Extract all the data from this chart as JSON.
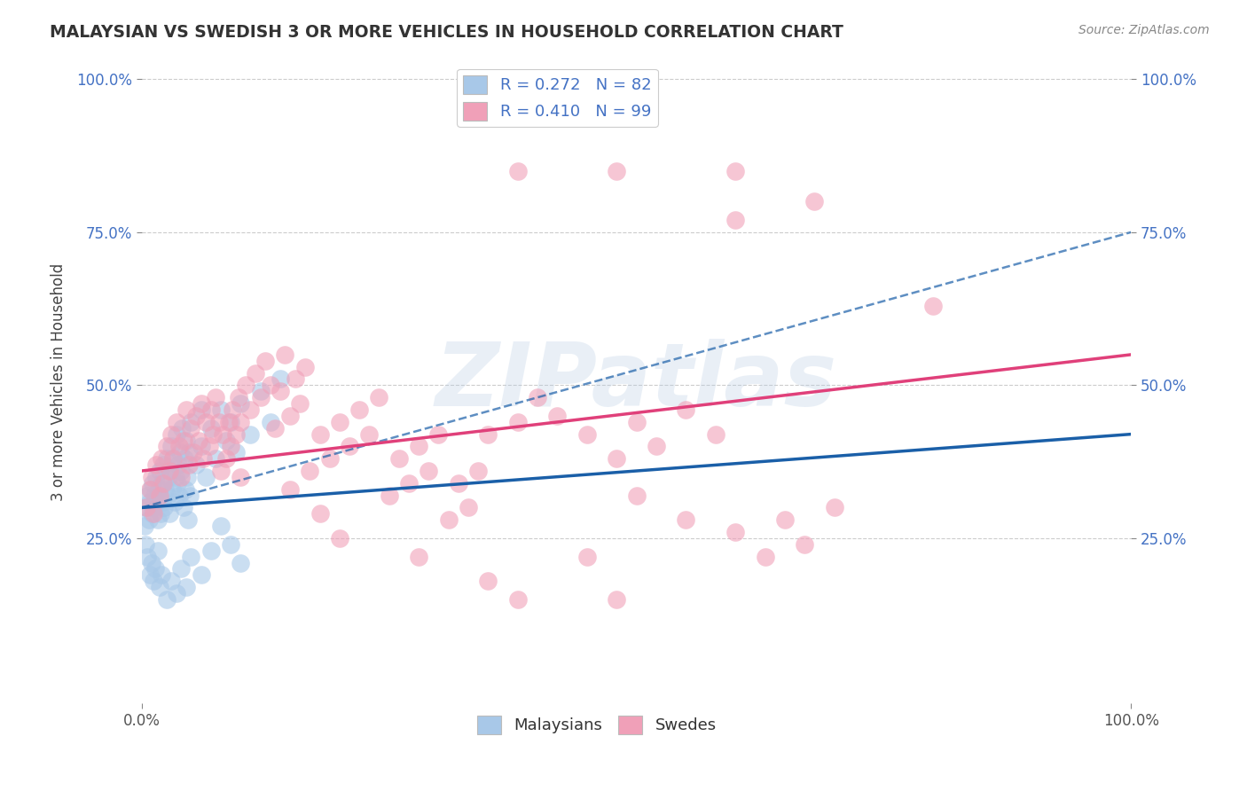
{
  "title": "MALAYSIAN VS SWEDISH 3 OR MORE VEHICLES IN HOUSEHOLD CORRELATION CHART",
  "source": "Source: ZipAtlas.com",
  "ylabel": "3 or more Vehicles in Household",
  "xlim": [
    0,
    1
  ],
  "ylim": [
    0,
    1
  ],
  "xtick_positions": [
    0.0,
    1.0
  ],
  "xtick_labels": [
    "0.0%",
    "100.0%"
  ],
  "ytick_positions": [
    0.25,
    0.5,
    0.75,
    1.0
  ],
  "ytick_labels": [
    "25.0%",
    "50.0%",
    "75.0%",
    "100.0%"
  ],
  "blue_color": "#a8c8e8",
  "pink_color": "#f0a0b8",
  "blue_line_color": "#1a5fa8",
  "pink_line_color": "#e0407a",
  "blue_line_style": "-",
  "blue_dash_style": "--",
  "background_color": "#ffffff",
  "grid_color": "#cccccc",
  "watermark": "ZIPatlas",
  "tick_color": "#4472c4",
  "title_color": "#333333",
  "blue_scatter": [
    [
      0.005,
      0.3
    ],
    [
      0.006,
      0.32
    ],
    [
      0.007,
      0.28
    ],
    [
      0.008,
      0.31
    ],
    [
      0.009,
      0.33
    ],
    [
      0.01,
      0.29
    ],
    [
      0.011,
      0.34
    ],
    [
      0.012,
      0.3
    ],
    [
      0.013,
      0.32
    ],
    [
      0.014,
      0.31
    ],
    [
      0.015,
      0.35
    ],
    [
      0.016,
      0.28
    ],
    [
      0.017,
      0.33
    ],
    [
      0.018,
      0.36
    ],
    [
      0.019,
      0.29
    ],
    [
      0.02,
      0.34
    ],
    [
      0.021,
      0.31
    ],
    [
      0.022,
      0.37
    ],
    [
      0.023,
      0.3
    ],
    [
      0.024,
      0.33
    ],
    [
      0.025,
      0.38
    ],
    [
      0.026,
      0.32
    ],
    [
      0.027,
      0.35
    ],
    [
      0.028,
      0.29
    ],
    [
      0.029,
      0.36
    ],
    [
      0.03,
      0.4
    ],
    [
      0.031,
      0.33
    ],
    [
      0.032,
      0.38
    ],
    [
      0.033,
      0.31
    ],
    [
      0.034,
      0.35
    ],
    [
      0.035,
      0.42
    ],
    [
      0.036,
      0.34
    ],
    [
      0.037,
      0.37
    ],
    [
      0.038,
      0.32
    ],
    [
      0.039,
      0.39
    ],
    [
      0.04,
      0.36
    ],
    [
      0.041,
      0.43
    ],
    [
      0.042,
      0.3
    ],
    [
      0.043,
      0.38
    ],
    [
      0.044,
      0.33
    ],
    [
      0.045,
      0.41
    ],
    [
      0.046,
      0.35
    ],
    [
      0.047,
      0.28
    ],
    [
      0.048,
      0.39
    ],
    [
      0.049,
      0.32
    ],
    [
      0.05,
      0.44
    ],
    [
      0.055,
      0.37
    ],
    [
      0.06,
      0.4
    ],
    [
      0.065,
      0.35
    ],
    [
      0.07,
      0.43
    ],
    [
      0.075,
      0.38
    ],
    [
      0.08,
      0.46
    ],
    [
      0.085,
      0.41
    ],
    [
      0.09,
      0.44
    ],
    [
      0.095,
      0.39
    ],
    [
      0.1,
      0.47
    ],
    [
      0.11,
      0.42
    ],
    [
      0.12,
      0.49
    ],
    [
      0.13,
      0.44
    ],
    [
      0.14,
      0.51
    ],
    [
      0.003,
      0.27
    ],
    [
      0.004,
      0.24
    ],
    [
      0.006,
      0.22
    ],
    [
      0.008,
      0.19
    ],
    [
      0.01,
      0.21
    ],
    [
      0.012,
      0.18
    ],
    [
      0.014,
      0.2
    ],
    [
      0.016,
      0.23
    ],
    [
      0.018,
      0.17
    ],
    [
      0.02,
      0.19
    ],
    [
      0.025,
      0.15
    ],
    [
      0.03,
      0.18
    ],
    [
      0.035,
      0.16
    ],
    [
      0.04,
      0.2
    ],
    [
      0.045,
      0.17
    ],
    [
      0.05,
      0.22
    ],
    [
      0.06,
      0.19
    ],
    [
      0.07,
      0.23
    ],
    [
      0.08,
      0.27
    ],
    [
      0.09,
      0.24
    ],
    [
      0.1,
      0.21
    ],
    [
      0.06,
      0.46
    ]
  ],
  "pink_scatter": [
    [
      0.005,
      0.3
    ],
    [
      0.008,
      0.33
    ],
    [
      0.01,
      0.35
    ],
    [
      0.012,
      0.29
    ],
    [
      0.015,
      0.37
    ],
    [
      0.018,
      0.32
    ],
    [
      0.02,
      0.38
    ],
    [
      0.022,
      0.34
    ],
    [
      0.025,
      0.4
    ],
    [
      0.028,
      0.36
    ],
    [
      0.03,
      0.42
    ],
    [
      0.032,
      0.38
    ],
    [
      0.035,
      0.44
    ],
    [
      0.038,
      0.4
    ],
    [
      0.04,
      0.35
    ],
    [
      0.042,
      0.41
    ],
    [
      0.045,
      0.46
    ],
    [
      0.048,
      0.37
    ],
    [
      0.05,
      0.43
    ],
    [
      0.052,
      0.39
    ],
    [
      0.055,
      0.45
    ],
    [
      0.058,
      0.41
    ],
    [
      0.06,
      0.47
    ],
    [
      0.062,
      0.38
    ],
    [
      0.065,
      0.44
    ],
    [
      0.068,
      0.4
    ],
    [
      0.07,
      0.46
    ],
    [
      0.072,
      0.42
    ],
    [
      0.075,
      0.48
    ],
    [
      0.078,
      0.44
    ],
    [
      0.08,
      0.36
    ],
    [
      0.082,
      0.42
    ],
    [
      0.085,
      0.38
    ],
    [
      0.088,
      0.44
    ],
    [
      0.09,
      0.4
    ],
    [
      0.092,
      0.46
    ],
    [
      0.095,
      0.42
    ],
    [
      0.098,
      0.48
    ],
    [
      0.1,
      0.44
    ],
    [
      0.105,
      0.5
    ],
    [
      0.11,
      0.46
    ],
    [
      0.115,
      0.52
    ],
    [
      0.12,
      0.48
    ],
    [
      0.125,
      0.54
    ],
    [
      0.13,
      0.5
    ],
    [
      0.135,
      0.43
    ],
    [
      0.14,
      0.49
    ],
    [
      0.145,
      0.55
    ],
    [
      0.15,
      0.45
    ],
    [
      0.155,
      0.51
    ],
    [
      0.16,
      0.47
    ],
    [
      0.165,
      0.53
    ],
    [
      0.17,
      0.36
    ],
    [
      0.18,
      0.42
    ],
    [
      0.19,
      0.38
    ],
    [
      0.2,
      0.44
    ],
    [
      0.21,
      0.4
    ],
    [
      0.22,
      0.46
    ],
    [
      0.23,
      0.42
    ],
    [
      0.24,
      0.48
    ],
    [
      0.25,
      0.32
    ],
    [
      0.26,
      0.38
    ],
    [
      0.27,
      0.34
    ],
    [
      0.28,
      0.4
    ],
    [
      0.29,
      0.36
    ],
    [
      0.3,
      0.42
    ],
    [
      0.31,
      0.28
    ],
    [
      0.32,
      0.34
    ],
    [
      0.33,
      0.3
    ],
    [
      0.34,
      0.36
    ],
    [
      0.35,
      0.42
    ],
    [
      0.38,
      0.44
    ],
    [
      0.4,
      0.48
    ],
    [
      0.42,
      0.45
    ],
    [
      0.45,
      0.42
    ],
    [
      0.48,
      0.38
    ],
    [
      0.5,
      0.44
    ],
    [
      0.52,
      0.4
    ],
    [
      0.55,
      0.46
    ],
    [
      0.58,
      0.42
    ],
    [
      0.6,
      0.26
    ],
    [
      0.63,
      0.22
    ],
    [
      0.65,
      0.28
    ],
    [
      0.67,
      0.24
    ],
    [
      0.7,
      0.3
    ],
    [
      0.38,
      0.85
    ],
    [
      0.48,
      0.85
    ],
    [
      0.6,
      0.85
    ],
    [
      0.68,
      0.8
    ],
    [
      0.6,
      0.77
    ],
    [
      0.8,
      0.63
    ],
    [
      0.1,
      0.35
    ],
    [
      0.15,
      0.33
    ],
    [
      0.18,
      0.29
    ],
    [
      0.2,
      0.25
    ],
    [
      0.28,
      0.22
    ],
    [
      0.35,
      0.18
    ],
    [
      0.38,
      0.15
    ],
    [
      0.45,
      0.22
    ],
    [
      0.48,
      0.15
    ],
    [
      0.5,
      0.32
    ],
    [
      0.55,
      0.28
    ]
  ],
  "blue_reg": [
    0.0,
    1.0,
    0.3,
    0.42
  ],
  "blue_dash_reg": [
    0.0,
    1.0,
    0.3,
    0.75
  ],
  "pink_reg": [
    0.0,
    1.0,
    0.36,
    0.55
  ]
}
